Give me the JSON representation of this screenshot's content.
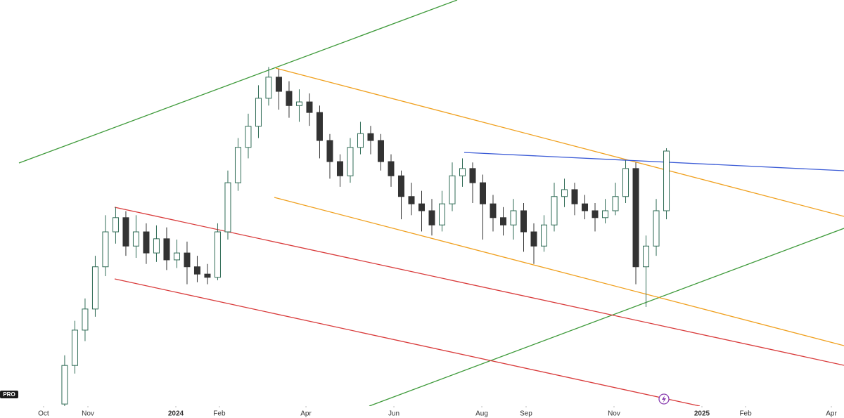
{
  "chart_data": {
    "type": "candlestick",
    "badge": "PRO",
    "open": [
      0.5,
      10,
      18.7,
      23.9,
      34.3,
      42.9,
      46.4,
      39.4,
      42.9,
      37.7,
      41.2,
      36,
      37.7,
      34.3,
      32.5,
      31.7,
      42.9,
      55,
      63.7,
      68.9,
      75.8,
      81,
      77.5,
      74,
      74.9,
      72.3,
      65.4,
      60.2,
      56.7,
      63.7,
      67.1,
      65.4,
      60.2,
      56.7,
      51.6,
      49.8,
      48.1,
      44.6,
      49.8,
      56.7,
      58.5,
      55,
      49.8,
      46.4,
      44.6,
      48.1,
      42.9,
      39.4,
      44.6,
      51.6,
      53.3,
      49.8,
      48.1,
      46.4,
      48.1,
      51.6,
      58.5,
      34.3,
      39.4,
      48.1
    ],
    "high": [
      12.5,
      21,
      26.5,
      37,
      47,
      49,
      48,
      47,
      45,
      44.5,
      44,
      41,
      40.5,
      37,
      35,
      45,
      58,
      66,
      72,
      79,
      83.5,
      83,
      80,
      78,
      77,
      74,
      67,
      62,
      66,
      70,
      69,
      67,
      62,
      58,
      55,
      53,
      51,
      53,
      60,
      61,
      60,
      57,
      52,
      49,
      51,
      50,
      45,
      47,
      55,
      56,
      55,
      52,
      50,
      51,
      55,
      60.5,
      60,
      42,
      51,
      63.5
    ],
    "low": [
      0,
      8,
      16,
      22,
      32,
      40,
      37,
      36.5,
      35,
      35.5,
      33.5,
      34,
      30,
      30.5,
      30,
      31,
      41,
      53,
      61,
      66,
      74,
      73,
      71,
      70,
      69,
      61,
      56,
      54,
      55,
      62,
      62,
      58,
      54,
      46,
      47,
      43,
      42,
      43,
      48,
      54,
      50,
      41,
      43,
      42,
      41,
      38,
      35,
      38,
      43,
      49,
      47,
      46,
      43,
      45,
      47,
      50,
      30,
      24.4,
      37,
      46
    ],
    "close": [
      10,
      18.7,
      23.9,
      34.3,
      42.9,
      46.4,
      39.4,
      42.9,
      37.7,
      41.2,
      36,
      37.7,
      34.3,
      32.5,
      31.7,
      42.9,
      55,
      63.7,
      68.9,
      75.8,
      81,
      77.5,
      74,
      74.9,
      72.3,
      65.4,
      60.2,
      56.7,
      63.7,
      67.1,
      65.4,
      60.2,
      56.7,
      51.6,
      49.8,
      48.1,
      44.6,
      49.8,
      56.7,
      58.5,
      55,
      49.8,
      46.4,
      44.6,
      48.1,
      42.9,
      39.4,
      44.6,
      51.6,
      53.3,
      49.8,
      48.1,
      46.4,
      48.1,
      51.6,
      58.5,
      34.3,
      39.4,
      48.1,
      62.8
    ],
    "up_color": "#2f6b55",
    "down_color": "#333333",
    "ylim": [
      0,
      100
    ],
    "xlim": [
      -6.34,
      76.41
    ],
    "xticks": [
      {
        "value": -2.07,
        "label": "Oct"
      },
      {
        "value": 2.28,
        "label": "Nov"
      },
      {
        "value": 10.9,
        "label": "2024"
      },
      {
        "value": 15.17,
        "label": "Feb"
      },
      {
        "value": 23.66,
        "label": "Apr"
      },
      {
        "value": 32.28,
        "label": "Jun"
      },
      {
        "value": 40.9,
        "label": "Aug"
      },
      {
        "value": 45.24,
        "label": "Sep"
      },
      {
        "value": 53.86,
        "label": "Nov"
      },
      {
        "value": 62.48,
        "label": "2025"
      },
      {
        "value": 66.76,
        "label": "Feb"
      },
      {
        "value": 75.17,
        "label": "Apr"
      }
    ]
  }
}
